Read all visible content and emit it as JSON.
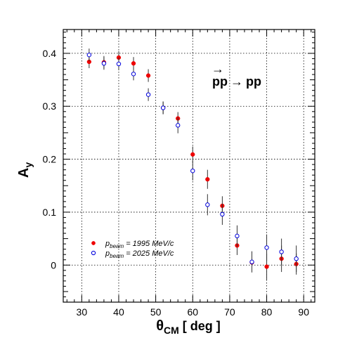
{
  "chart_data": {
    "type": "scatter",
    "xlabel": {
      "main": "θ",
      "sub": "CM",
      "rest": " [ deg ]"
    },
    "ylabel": {
      "main": "A",
      "sub": "y"
    },
    "xlim": [
      25,
      93
    ],
    "ylim": [
      -0.07,
      0.445
    ],
    "xticks": [
      30,
      40,
      50,
      60,
      70,
      80,
      90
    ],
    "yticks": [
      0,
      0.1,
      0.2,
      0.3,
      0.4
    ],
    "ytick_labels": [
      "0",
      "0.1",
      "0.2",
      "0.3",
      "0.4"
    ],
    "grid": true,
    "legend_position": "lower-left",
    "annotation": {
      "arrow_text": "→",
      "lhs": "pp",
      "rhs": "pp",
      "arrow_between": "→"
    },
    "series": [
      {
        "legend_main": "p",
        "legend_sub": "beam",
        "legend_rest": " = 1995 MeV/c",
        "marker": "filled-circle",
        "color": "#ee0000",
        "points": [
          {
            "x": 32,
            "y": 0.384,
            "err": 0.012
          },
          {
            "x": 36,
            "y": 0.383,
            "err": 0.012
          },
          {
            "x": 40,
            "y": 0.392,
            "err": 0.012
          },
          {
            "x": 44,
            "y": 0.381,
            "err": 0.012
          },
          {
            "x": 48,
            "y": 0.358,
            "err": 0.012
          },
          {
            "x": 52,
            "y": 0.297,
            "err": 0.012
          },
          {
            "x": 56,
            "y": 0.277,
            "err": 0.012
          },
          {
            "x": 60,
            "y": 0.209,
            "err": 0.015
          },
          {
            "x": 64,
            "y": 0.162,
            "err": 0.018
          },
          {
            "x": 68,
            "y": 0.112,
            "err": 0.018
          },
          {
            "x": 72,
            "y": 0.037,
            "err": 0.018
          },
          {
            "x": 76,
            "y": 0.005,
            "err": 0.018
          },
          {
            "x": 80,
            "y": -0.003,
            "err": 0.025
          },
          {
            "x": 84,
            "y": 0.012,
            "err": 0.025
          },
          {
            "x": 88,
            "y": 0.002,
            "err": 0.02
          }
        ]
      },
      {
        "legend_main": "p",
        "legend_sub": "beam",
        "legend_rest": " = 2025 MeV/c",
        "marker": "open-circle",
        "color": "#0000dd",
        "points": [
          {
            "x": 32,
            "y": 0.397,
            "err": 0.012
          },
          {
            "x": 36,
            "y": 0.381,
            "err": 0.012
          },
          {
            "x": 40,
            "y": 0.38,
            "err": 0.012
          },
          {
            "x": 44,
            "y": 0.361,
            "err": 0.012
          },
          {
            "x": 48,
            "y": 0.322,
            "err": 0.012
          },
          {
            "x": 52,
            "y": 0.297,
            "err": 0.012
          },
          {
            "x": 56,
            "y": 0.264,
            "err": 0.015
          },
          {
            "x": 60,
            "y": 0.178,
            "err": 0.018
          },
          {
            "x": 64,
            "y": 0.114,
            "err": 0.02
          },
          {
            "x": 68,
            "y": 0.096,
            "err": 0.02
          },
          {
            "x": 72,
            "y": 0.055,
            "err": 0.02
          },
          {
            "x": 76,
            "y": 0.006,
            "err": 0.02
          },
          {
            "x": 80,
            "y": 0.033,
            "err": 0.025
          },
          {
            "x": 84,
            "y": 0.025,
            "err": 0.025
          },
          {
            "x": 88,
            "y": 0.012,
            "err": 0.025
          }
        ]
      }
    ]
  }
}
